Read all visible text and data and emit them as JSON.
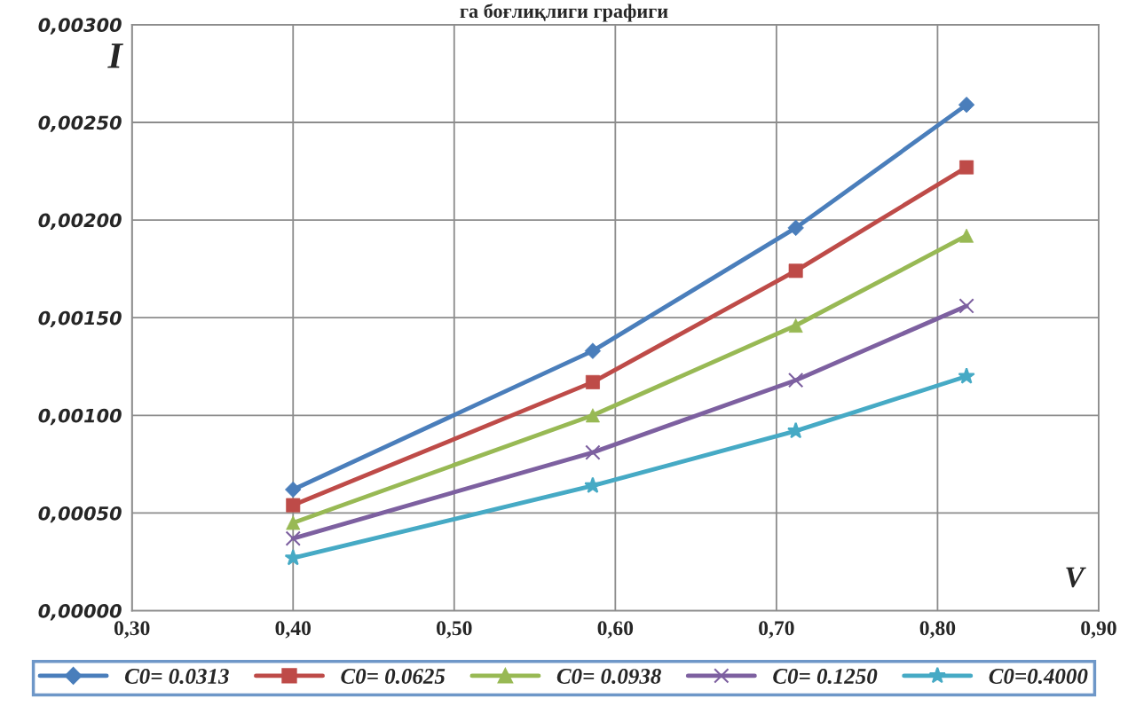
{
  "chart_data": {
    "type": "line",
    "title": "га боғлиқлиги графиги",
    "xlabel": "V",
    "ylabel": "I",
    "x": [
      0.4,
      0.586,
      0.712,
      0.818
    ],
    "series": [
      {
        "name": "C0= 0.0313",
        "color": "#4a7ebb",
        "marker": "diamond",
        "values": [
          0.00062,
          0.00133,
          0.00196,
          0.00259
        ]
      },
      {
        "name": "C0= 0.0625",
        "color": "#be4b48",
        "marker": "square",
        "values": [
          0.00054,
          0.00117,
          0.00174,
          0.00227
        ]
      },
      {
        "name": "C0= 0.0938",
        "color": "#98b954",
        "marker": "triangle",
        "values": [
          0.00045,
          0.001,
          0.00146,
          0.00192
        ]
      },
      {
        "name": "C0= 0.1250",
        "color": "#7d60a0",
        "marker": "cross",
        "values": [
          0.00037,
          0.00081,
          0.00118,
          0.00156
        ]
      },
      {
        "name": "C0=0.4000",
        "color": "#46aac5",
        "marker": "star",
        "values": [
          0.00027,
          0.00064,
          0.00092,
          0.0012
        ]
      }
    ],
    "xlim": [
      0.3,
      0.9
    ],
    "xticks": [
      {
        "value": 0.3,
        "label": "0,30"
      },
      {
        "value": 0.4,
        "label": "0,40"
      },
      {
        "value": 0.5,
        "label": "0,50"
      },
      {
        "value": 0.6,
        "label": "0,60"
      },
      {
        "value": 0.7,
        "label": "0,70"
      },
      {
        "value": 0.8,
        "label": "0,80"
      },
      {
        "value": 0.9,
        "label": "0,90"
      }
    ],
    "ylim": [
      0,
      0.003
    ],
    "yticks": [
      {
        "value": 0,
        "label": "0,00000"
      },
      {
        "value": 0.0005,
        "label": "0,00050"
      },
      {
        "value": 0.001,
        "label": "0,00100"
      },
      {
        "value": 0.0015,
        "label": "0,00150"
      },
      {
        "value": 0.002,
        "label": "0,00200"
      },
      {
        "value": 0.0025,
        "label": "0,00250"
      },
      {
        "value": 0.003,
        "label": "0,00300"
      }
    ],
    "grid": true,
    "legend": "bottom",
    "line_style": "solid"
  }
}
